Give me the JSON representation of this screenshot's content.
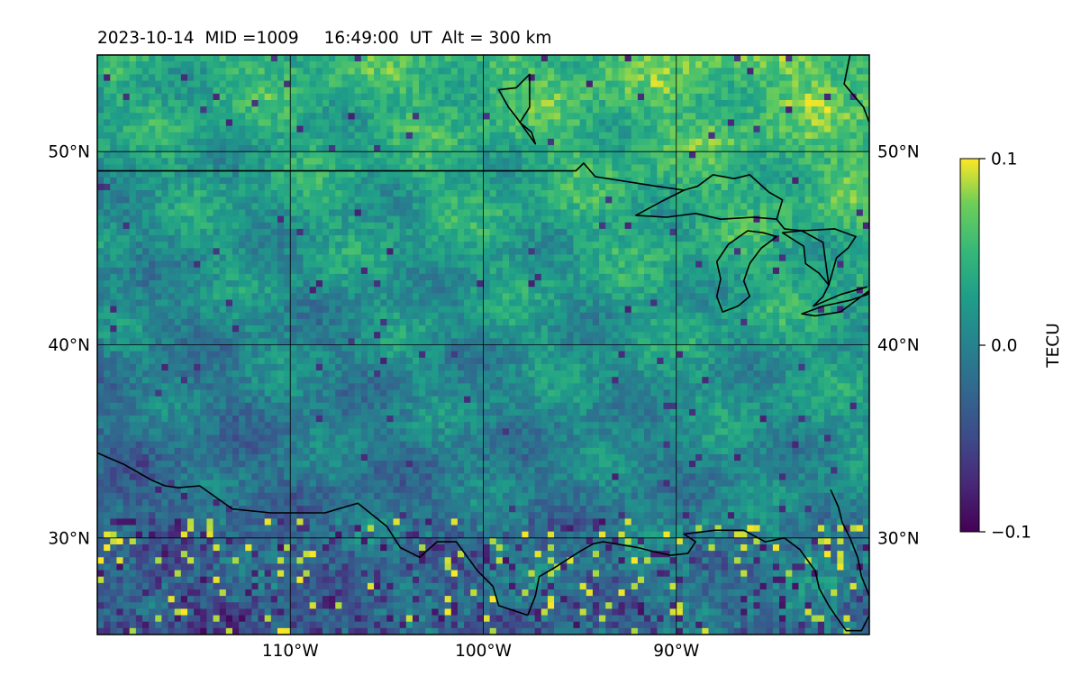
{
  "header": {
    "date": "2023-10-14",
    "mid": "MID =1009",
    "time": "16:49:00",
    "ut": "UT",
    "alt": "Alt = 300 km"
  },
  "chart_data": {
    "type": "heatmap",
    "title": "2023-10-14  MID =1009    16:49:00  UT  Alt = 300 km",
    "xlim": [
      -120,
      -80
    ],
    "ylim": [
      25,
      55
    ],
    "x_ticks": [
      {
        "value": -110,
        "label": "110°W"
      },
      {
        "value": -100,
        "label": "100°W"
      },
      {
        "value": -90,
        "label": "90°W"
      }
    ],
    "y_ticks": [
      {
        "value": 50,
        "label": "50°N"
      },
      {
        "value": 40,
        "label": "40°N"
      },
      {
        "value": 30,
        "label": "30°N"
      }
    ],
    "colorbar": {
      "label": "TECU",
      "range": [
        -0.1,
        0.1
      ],
      "ticks": [
        {
          "value": 0.1,
          "label": "0.1"
        },
        {
          "value": 0.0,
          "label": "0.0"
        },
        {
          "value": -0.1,
          "label": "−0.1"
        }
      ],
      "colormap": "viridis"
    },
    "grid": true,
    "coastlines": true
  },
  "map": {
    "coastlines": [
      [
        [
          -120.0,
          34.4
        ],
        [
          -118.6,
          33.8
        ],
        [
          -117.2,
          33.0
        ],
        [
          -116.5,
          32.7
        ],
        [
          -115.8,
          32.6
        ],
        [
          -114.7,
          32.7
        ],
        [
          -113.0,
          31.5
        ],
        [
          -111.0,
          31.3
        ],
        [
          -108.2,
          31.3
        ],
        [
          -106.5,
          31.8
        ],
        [
          -105.0,
          30.6
        ],
        [
          -104.3,
          29.5
        ],
        [
          -103.3,
          29.0
        ],
        [
          -102.4,
          29.8
        ],
        [
          -101.4,
          29.8
        ],
        [
          -100.3,
          28.3
        ],
        [
          -99.5,
          27.5
        ],
        [
          -99.2,
          26.5
        ],
        [
          -97.7,
          26.0
        ]
      ],
      [
        [
          -97.7,
          26.0
        ],
        [
          -97.3,
          27.0
        ],
        [
          -97.1,
          28.0
        ],
        [
          -96.4,
          28.4
        ],
        [
          -95.0,
          29.3
        ],
        [
          -94.3,
          29.7
        ],
        [
          -93.8,
          29.8
        ],
        [
          -92.0,
          29.5
        ],
        [
          -91.2,
          29.3
        ],
        [
          -90.3,
          29.1
        ],
        [
          -89.4,
          29.2
        ],
        [
          -89.0,
          29.8
        ],
        [
          -89.6,
          30.2
        ],
        [
          -88.0,
          30.4
        ],
        [
          -86.5,
          30.4
        ],
        [
          -85.4,
          29.8
        ],
        [
          -84.4,
          30.0
        ],
        [
          -83.6,
          29.4
        ],
        [
          -82.8,
          28.3
        ],
        [
          -82.6,
          27.4
        ],
        [
          -82.1,
          26.5
        ],
        [
          -81.7,
          25.9
        ],
        [
          -81.2,
          25.2
        ],
        [
          -80.4,
          25.2
        ],
        [
          -80.0,
          26.0
        ],
        [
          -80.0,
          27.0
        ],
        [
          -80.4,
          28.0
        ],
        [
          -80.6,
          29.0
        ],
        [
          -81.0,
          30.0
        ],
        [
          -81.4,
          30.8
        ],
        [
          -81.6,
          31.6
        ],
        [
          -82.0,
          32.5
        ]
      ],
      [
        [
          -120.0,
          49.0
        ],
        [
          -95.2,
          49.0
        ],
        [
          -94.8,
          49.4
        ],
        [
          -94.2,
          48.7
        ],
        [
          -91.0,
          48.2
        ],
        [
          -89.6,
          48.0
        ]
      ],
      [
        [
          -84.8,
          46.5
        ],
        [
          -84.4,
          46.0
        ],
        [
          -83.5,
          45.9
        ],
        [
          -82.4,
          45.3
        ],
        [
          -82.1,
          43.1
        ]
      ],
      [
        [
          -82.1,
          43.1
        ],
        [
          -82.4,
          42.5
        ],
        [
          -82.9,
          42.0
        ],
        [
          -81.5,
          42.6
        ],
        [
          -80.1,
          43.0
        ]
      ],
      [
        [
          -81.0,
          55.0
        ],
        [
          -81.3,
          53.5
        ],
        [
          -80.3,
          52.3
        ],
        [
          -80.0,
          51.5
        ]
      ]
    ],
    "lakes": [
      [
        [
          -92.1,
          46.7
        ],
        [
          -90.5,
          46.6
        ],
        [
          -89.0,
          46.8
        ],
        [
          -87.7,
          46.5
        ],
        [
          -86.0,
          46.6
        ],
        [
          -84.8,
          46.5
        ],
        [
          -84.5,
          47.5
        ],
        [
          -85.2,
          47.9
        ],
        [
          -86.2,
          48.8
        ],
        [
          -87.0,
          48.6
        ],
        [
          -88.1,
          48.8
        ],
        [
          -88.9,
          48.2
        ],
        [
          -89.6,
          48.0
        ],
        [
          -90.8,
          47.4
        ],
        [
          -92.1,
          46.7
        ]
      ],
      [
        [
          -87.6,
          41.7
        ],
        [
          -87.9,
          42.5
        ],
        [
          -87.7,
          43.4
        ],
        [
          -87.9,
          44.3
        ],
        [
          -87.3,
          45.2
        ],
        [
          -86.3,
          45.9
        ],
        [
          -85.5,
          45.8
        ],
        [
          -84.8,
          45.6
        ],
        [
          -85.6,
          45.0
        ],
        [
          -86.2,
          44.2
        ],
        [
          -86.5,
          43.3
        ],
        [
          -86.2,
          42.5
        ],
        [
          -86.8,
          42.0
        ],
        [
          -87.6,
          41.7
        ]
      ],
      [
        [
          -84.5,
          45.8
        ],
        [
          -83.4,
          45.1
        ],
        [
          -83.3,
          44.2
        ],
        [
          -82.6,
          43.7
        ],
        [
          -82.1,
          43.1
        ],
        [
          -81.7,
          44.5
        ],
        [
          -81.1,
          45.0
        ],
        [
          -80.7,
          45.6
        ],
        [
          -81.8,
          46.0
        ],
        [
          -83.5,
          45.9
        ],
        [
          -84.5,
          45.8
        ]
      ],
      [
        [
          -83.5,
          41.6
        ],
        [
          -82.4,
          42.0
        ],
        [
          -81.0,
          42.3
        ],
        [
          -80.1,
          42.6
        ],
        [
          -80.0,
          42.8
        ],
        [
          -81.5,
          41.7
        ],
        [
          -82.8,
          41.5
        ],
        [
          -83.5,
          41.6
        ]
      ],
      [
        [
          -99.2,
          53.2
        ],
        [
          -98.3,
          53.3
        ],
        [
          -97.6,
          54.0
        ],
        [
          -97.6,
          52.3
        ],
        [
          -98.1,
          51.5
        ],
        [
          -97.5,
          51.0
        ],
        [
          -97.3,
          50.4
        ],
        [
          -98.3,
          51.8
        ],
        [
          -98.7,
          52.3
        ],
        [
          -99.2,
          53.2
        ]
      ]
    ]
  }
}
